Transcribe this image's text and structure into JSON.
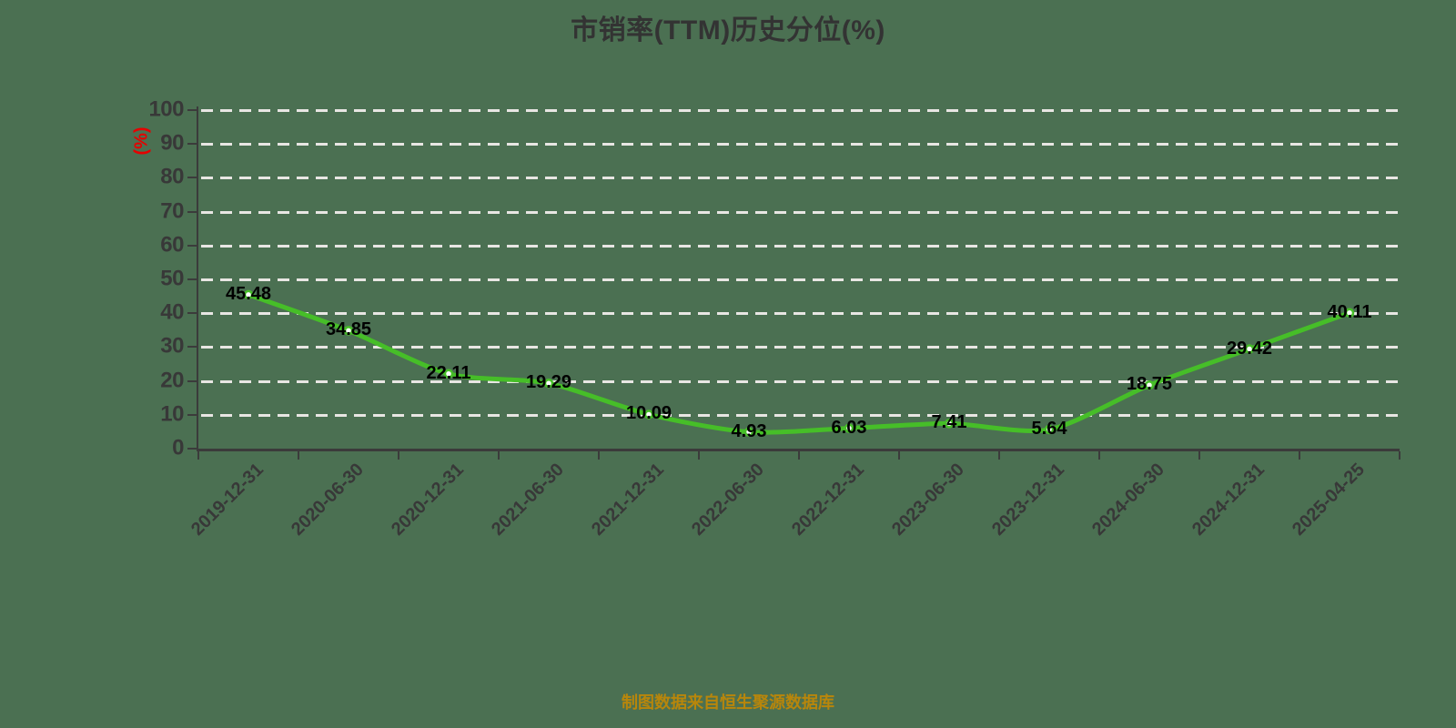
{
  "title": "市销率(TTM)历史分位(%)",
  "footer": {
    "source_note": "制图数据来自恒生聚源数据库"
  },
  "colors": {
    "background": "#4B7052",
    "line": "#46BE28",
    "marker_fill": "#FFFFFF",
    "grid": "#E8E6E3",
    "axis": "#3B3B3B",
    "tick_label": "#383838",
    "value_label": "#000000",
    "title": "#333333",
    "unit_label": "#E60000",
    "source_note": "#B8860B"
  },
  "chart_data": {
    "type": "line",
    "title": "市销率(TTM)历史分位(%)",
    "ylabel": "(%)",
    "xlabel": "",
    "categories": [
      "2019-12-31",
      "2020-06-30",
      "2020-12-31",
      "2021-06-30",
      "2021-12-31",
      "2022-06-30",
      "2022-12-31",
      "2023-06-30",
      "2023-12-31",
      "2024-06-30",
      "2024-12-31",
      "2025-04-25"
    ],
    "values": [
      45.48,
      34.85,
      22.11,
      19.29,
      10.09,
      4.93,
      6.03,
      7.41,
      5.64,
      18.75,
      29.42,
      40.11
    ],
    "ylim": [
      0,
      100
    ],
    "y_ticks": [
      0,
      10,
      20,
      30,
      40,
      50,
      60,
      70,
      80,
      90,
      100
    ],
    "grid": "horizontal-dashed-white",
    "legend": "none",
    "marker": "white-dot-green-ring",
    "data_labels": "centered-on-points",
    "x_label_rotation_deg": 45,
    "source_note": "制图数据来自恒生聚源数据库"
  }
}
